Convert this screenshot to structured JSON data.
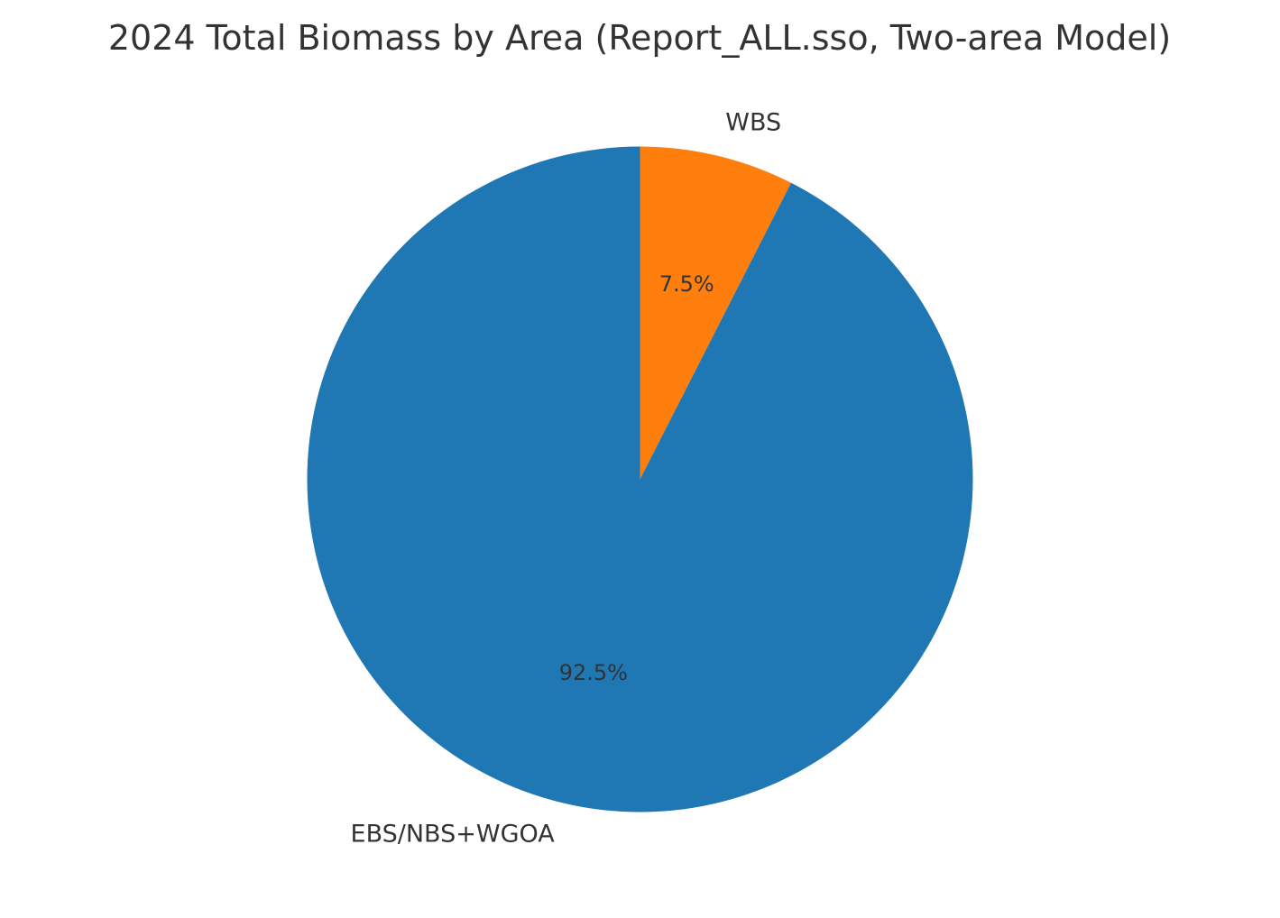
{
  "chart_data": {
    "type": "pie",
    "title": "2024 Total Biomass by Area (Report_ALL.sso, Two-area Model)",
    "start_angle_deg": 90,
    "direction": "clockwise",
    "slices": [
      {
        "label": "WBS",
        "percent": 7.5,
        "percent_label": "7.5%",
        "color": "#ff7f0e"
      },
      {
        "label": "EBS/NBS+WGOA",
        "percent": 92.5,
        "percent_label": "92.5%",
        "color": "#1f77b4"
      }
    ]
  }
}
